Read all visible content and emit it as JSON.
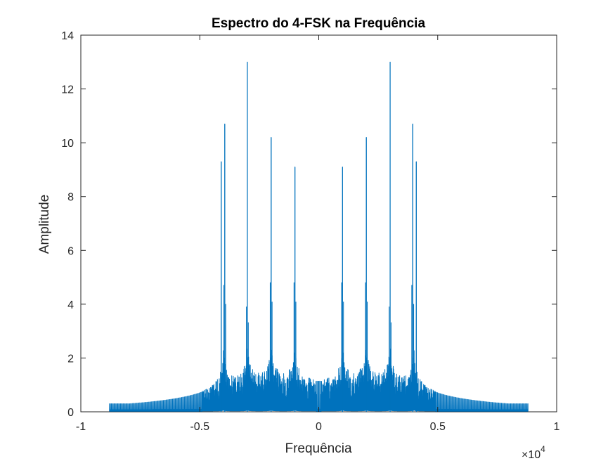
{
  "chart_data": {
    "type": "line",
    "title": "Espectro do 4-FSK na Frequência",
    "xlabel": "Frequência",
    "ylabel": "Amplitude",
    "x_exponent_label": "×10",
    "x_exponent_power": "4",
    "x_scale_factor": 10000,
    "xlim": [
      -10000,
      10000
    ],
    "ylim": [
      0,
      14
    ],
    "x_ticks": [
      -10000,
      -5000,
      0,
      5000,
      10000
    ],
    "x_tick_labels": [
      "-1",
      "-0.5",
      "0",
      "0.5",
      "1"
    ],
    "y_ticks": [
      0,
      2,
      4,
      6,
      8,
      10,
      12,
      14
    ],
    "y_tick_labels": [
      "0",
      "2",
      "4",
      "6",
      "8",
      "10",
      "12",
      "14"
    ],
    "grid": false,
    "legend": "none",
    "line_color": "#0072BD",
    "series": [
      {
        "x_range": [
          -8800,
          8800
        ],
        "peaks": [
          {
            "x": -4100,
            "y": 9.3
          },
          {
            "x": -3950,
            "y": 10.7
          },
          {
            "x": -3000,
            "y": 13.0
          },
          {
            "x": -2000,
            "y": 10.2
          },
          {
            "x": -1000,
            "y": 9.1
          },
          {
            "x": 1000,
            "y": 9.1
          },
          {
            "x": 2000,
            "y": 10.2
          },
          {
            "x": 3000,
            "y": 13.0
          },
          {
            "x": 3950,
            "y": 10.7
          },
          {
            "x": 4100,
            "y": 9.3
          }
        ],
        "secondary_peaks": [
          {
            "x": -3950,
            "y": 4.7
          },
          {
            "x": -3000,
            "y": 3.9
          },
          {
            "x": -2000,
            "y": 4.8
          },
          {
            "x": -1000,
            "y": 4.8
          },
          {
            "x": 1000,
            "y": 4.8
          },
          {
            "x": 2000,
            "y": 4.8
          },
          {
            "x": 3000,
            "y": 3.9
          },
          {
            "x": 3950,
            "y": 4.7
          }
        ],
        "floor_level": 0.3
      }
    ]
  }
}
